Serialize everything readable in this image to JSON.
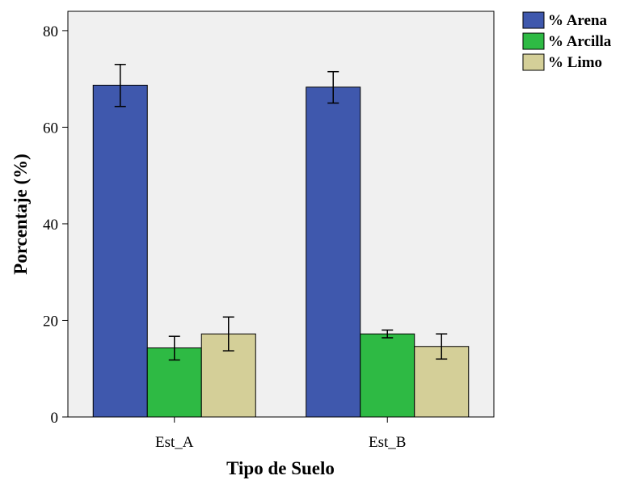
{
  "chart_data": {
    "type": "bar",
    "title": "",
    "xlabel": "Tipo de Suelo",
    "ylabel": "Porcentaje (%)",
    "categories": [
      "Est_A",
      "Est_B"
    ],
    "ylim": [
      0,
      84
    ],
    "yticks": [
      "0",
      "20",
      "40",
      "60",
      "80"
    ],
    "grid": false,
    "legend_position": "top-right, outside plot",
    "error_bars": true,
    "series": [
      {
        "name": "% Arena",
        "color": "#3F58AD",
        "values": [
          68.7,
          68.3
        ],
        "err_low": [
          64.3,
          65.0
        ],
        "err_high": [
          73.0,
          71.5
        ]
      },
      {
        "name": "% Arcilla",
        "color": "#2EBA44",
        "values": [
          14.3,
          17.2
        ],
        "err_low": [
          11.8,
          16.4
        ],
        "err_high": [
          16.7,
          18.0
        ]
      },
      {
        "name": "% Limo",
        "color": "#D4CF98",
        "values": [
          17.2,
          14.6
        ],
        "err_low": [
          13.7,
          12.0
        ],
        "err_high": [
          20.7,
          17.2
        ]
      }
    ]
  }
}
